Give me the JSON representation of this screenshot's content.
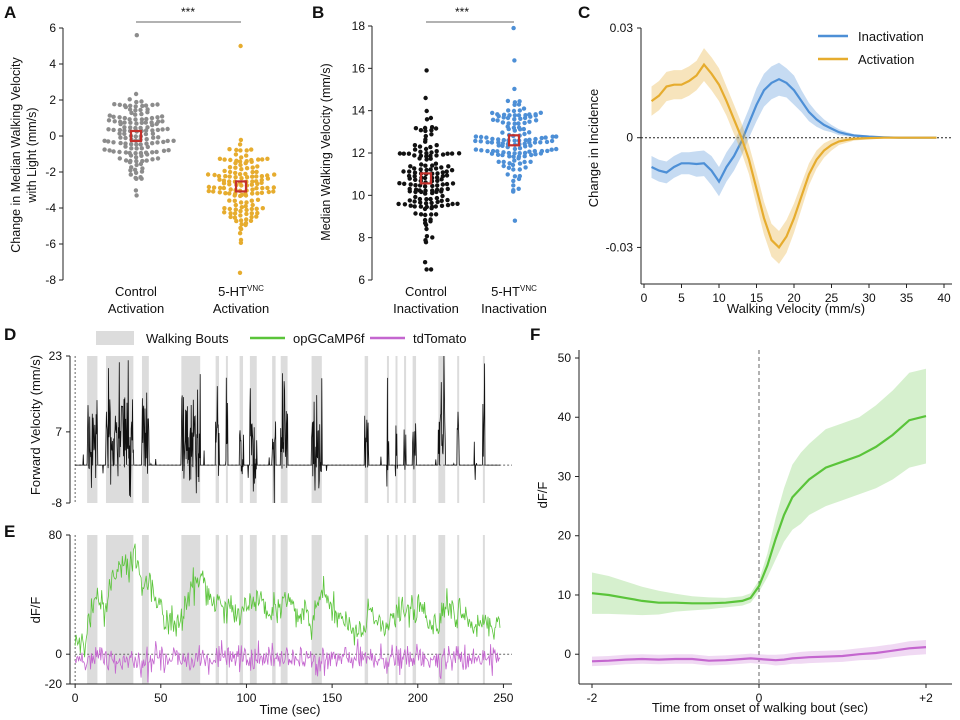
{
  "colors": {
    "control": "#8c8c8c",
    "activation": "#e6ac2e",
    "inactivation_ctrl": "#111111",
    "inactivation": "#4d8fd6",
    "median_marker": "#c4302b",
    "walking_bouts": "#dcdcdc",
    "gcamp": "#5ac43a",
    "tdtomato": "#c466cf"
  },
  "panel_labels": {
    "a": "A",
    "b": "B",
    "c": "C",
    "d": "D",
    "e": "E",
    "f": "F"
  },
  "chart_data": [
    {
      "panel": "A",
      "type": "scatter",
      "ylabel_line1": "Change in Median Walking Velocity",
      "ylabel_line2": "with Light (mm/s)",
      "ylim": [
        -8,
        6
      ],
      "yticks": [
        "-8",
        "-6",
        "-4",
        "-2",
        "0",
        "2",
        "4",
        "6"
      ],
      "significance": "***",
      "groups": [
        {
          "label_line1": "Control",
          "label_line2": "Activation",
          "median": 0,
          "n": 140,
          "spread": 1.6,
          "min": -3.3,
          "max": 5.6
        },
        {
          "label_main": "5-HT",
          "label_sup": "VNC",
          "label_line2": "Activation",
          "median": -2.8,
          "n": 140,
          "spread": 1.9,
          "min": -7.6,
          "max": 5.0
        }
      ]
    },
    {
      "panel": "B",
      "type": "scatter",
      "ylabel": "Median Walking Velocity (mm/s)",
      "ylim": [
        6,
        18
      ],
      "yticks": [
        "6",
        "8",
        "10",
        "12",
        "14",
        "16",
        "18"
      ],
      "significance": "***",
      "groups": [
        {
          "label_line1": "Control",
          "label_line2": "Inactivation",
          "median": 10.8,
          "n": 150,
          "spread": 1.9,
          "min": 6.5,
          "max": 15.9
        },
        {
          "label_main": "5-HT",
          "label_sup": "VNC",
          "label_line2": "Inactivation",
          "median": 12.6,
          "n": 140,
          "spread": 1.6,
          "min": 8.8,
          "max": 17.9
        }
      ]
    },
    {
      "panel": "C",
      "type": "line",
      "xlabel": "Walking Velocity (mm/s)",
      "ylabel": "Change in Incidence",
      "xlim": [
        0,
        40
      ],
      "ylim": [
        -0.04,
        0.03
      ],
      "xticks": [
        "0",
        "5",
        "10",
        "15",
        "20",
        "25",
        "30",
        "35",
        "40"
      ],
      "yticks": [
        "0.03",
        "0",
        "-0.03"
      ],
      "legend_position": "top-right",
      "x": [
        1,
        2,
        3,
        4,
        5,
        6,
        7,
        8,
        9,
        10,
        11,
        12,
        13,
        14,
        15,
        16,
        17,
        18,
        19,
        20,
        21,
        22,
        23,
        24,
        25,
        26,
        27,
        28,
        30,
        32,
        34,
        36,
        38,
        39
      ],
      "series": [
        {
          "name": "Inactivation",
          "values": [
            -0.008,
            -0.009,
            -0.0095,
            -0.008,
            -0.007,
            -0.007,
            -0.0072,
            -0.007,
            -0.009,
            -0.012,
            -0.008,
            -0.005,
            -0.001,
            0.004,
            0.009,
            0.013,
            0.015,
            0.016,
            0.015,
            0.013,
            0.01,
            0.007,
            0.005,
            0.0035,
            0.0025,
            0.0015,
            0.001,
            0.0006,
            0.0003,
            0.0001,
            0,
            0,
            0,
            0
          ],
          "band": [
            0.003,
            0.003,
            0.003,
            0.003,
            0.003,
            0.003,
            0.0035,
            0.0035,
            0.004,
            0.004,
            0.004,
            0.004,
            0.004,
            0.004,
            0.0045,
            0.0045,
            0.0045,
            0.0045,
            0.004,
            0.004,
            0.003,
            0.0025,
            0.002,
            0.0015,
            0.001,
            0.0008,
            0.0006,
            0.0004,
            0.0003,
            0.0002,
            0.0001,
            0.0001,
            0.0001,
            0.0001
          ]
        },
        {
          "name": "Activation",
          "values": [
            0.01,
            0.0115,
            0.014,
            0.0145,
            0.0145,
            0.0155,
            0.017,
            0.02,
            0.0175,
            0.0145,
            0.01,
            0.005,
            0.0,
            -0.006,
            -0.014,
            -0.022,
            -0.028,
            -0.03,
            -0.027,
            -0.022,
            -0.016,
            -0.01,
            -0.006,
            -0.0035,
            -0.002,
            -0.001,
            -0.0006,
            -0.0003,
            -0.0001,
            0,
            0,
            0,
            0,
            0
          ],
          "band": [
            0.004,
            0.004,
            0.004,
            0.004,
            0.004,
            0.004,
            0.004,
            0.0045,
            0.0045,
            0.0045,
            0.004,
            0.004,
            0.004,
            0.004,
            0.0045,
            0.0045,
            0.0045,
            0.0045,
            0.0045,
            0.004,
            0.0035,
            0.003,
            0.0025,
            0.002,
            0.0015,
            0.001,
            0.0008,
            0.0005,
            0.0003,
            0.0002,
            0.0001,
            0.0001,
            0.0001,
            0.0001
          ]
        }
      ]
    },
    {
      "panel": "D",
      "type": "line",
      "ylabel": "Forward Velocity (mm/s)",
      "ylim": [
        -8,
        23
      ],
      "yticks": [
        "23",
        "7",
        "-8"
      ],
      "xlim": [
        -3,
        255
      ],
      "legend_items": [
        "Walking Bouts",
        "opGCaMP6f",
        "tdTomato"
      ],
      "walking_bouts": [
        [
          7,
          13
        ],
        [
          18,
          34
        ],
        [
          39,
          43
        ],
        [
          62,
          73
        ],
        [
          82,
          84
        ],
        [
          88,
          89
        ],
        [
          96,
          98
        ],
        [
          102,
          106
        ],
        [
          115,
          117
        ],
        [
          120,
          124
        ],
        [
          138,
          144
        ],
        [
          169,
          171
        ],
        [
          182,
          183
        ],
        [
          187,
          188
        ],
        [
          192,
          193
        ],
        [
          197,
          199
        ],
        [
          212,
          216
        ],
        [
          223,
          224
        ],
        [
          238,
          239
        ]
      ],
      "duration_sec": 248
    },
    {
      "panel": "E",
      "type": "line",
      "ylabel": "dF/F",
      "xlabel": "Time (sec)",
      "ylim": [
        -20,
        80
      ],
      "yticks": [
        "80",
        "0",
        "-20"
      ],
      "xticks": [
        "0",
        "50",
        "100",
        "150",
        "200",
        "250"
      ],
      "xlim": [
        -3,
        255
      ],
      "series": [
        {
          "name": "opGCaMP6f"
        },
        {
          "name": "tdTomato"
        }
      ]
    },
    {
      "panel": "F",
      "type": "line",
      "ylabel": "dF/F",
      "xlabel": "Time from onset of walking bout (sec)",
      "xlim": [
        -2,
        2
      ],
      "ylim": [
        -3,
        50
      ],
      "xticks": [
        "-2",
        "0",
        "+2"
      ],
      "yticks": [
        "0",
        "10",
        "20",
        "30",
        "40",
        "50"
      ],
      "x": [
        -2.0,
        -1.8,
        -1.6,
        -1.4,
        -1.2,
        -1.0,
        -0.8,
        -0.6,
        -0.4,
        -0.2,
        -0.1,
        0.0,
        0.1,
        0.2,
        0.3,
        0.4,
        0.5,
        0.6,
        0.8,
        1.0,
        1.2,
        1.4,
        1.6,
        1.8,
        2.0
      ],
      "series": [
        {
          "name": "opGCaMP6f",
          "values": [
            10.3,
            10.0,
            9.5,
            9.0,
            8.7,
            8.7,
            8.6,
            8.6,
            8.7,
            9.0,
            9.5,
            11.5,
            15,
            19.5,
            23.5,
            26.5,
            28,
            29.5,
            31.5,
            32.5,
            33.5,
            35,
            37,
            39.5,
            40.2
          ],
          "band": [
            3.5,
            3.2,
            2.8,
            2.4,
            2.0,
            1.5,
            1.2,
            1.0,
            0.8,
            0.8,
            0.8,
            1.0,
            2.0,
            3.5,
            4.5,
            5.5,
            6.0,
            6.0,
            6.5,
            6.5,
            6.5,
            7.0,
            7.5,
            8.0,
            8.0
          ]
        },
        {
          "name": "tdTomato",
          "values": [
            -1.2,
            -1.1,
            -0.9,
            -0.8,
            -0.9,
            -0.8,
            -0.8,
            -1.1,
            -1.0,
            -0.8,
            -0.7,
            -0.8,
            -0.9,
            -1.0,
            -0.9,
            -0.7,
            -0.6,
            -0.5,
            -0.4,
            -0.3,
            0.0,
            0.2,
            0.6,
            1.0,
            1.2
          ],
          "band": [
            0.8,
            0.8,
            0.8,
            0.8,
            0.8,
            0.8,
            0.8,
            0.8,
            0.8,
            0.8,
            0.8,
            0.8,
            0.8,
            0.9,
            0.9,
            0.9,
            1.0,
            1.0,
            1.0,
            1.0,
            1.0,
            1.1,
            1.1,
            1.2,
            1.2
          ]
        }
      ]
    }
  ]
}
